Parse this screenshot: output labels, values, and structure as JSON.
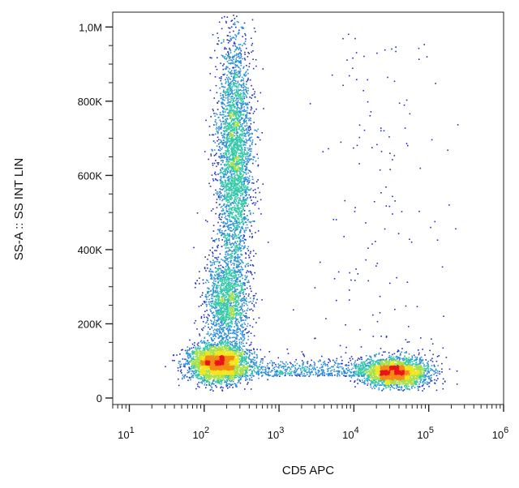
{
  "chart_data": {
    "type": "scatter",
    "title": "",
    "xlabel": "CD5 APC",
    "ylabel": "SS-A :: SS INT LIN",
    "x_scale": "log",
    "xlim": [
      6,
      1000000
    ],
    "y_scale": "linear",
    "ylim": [
      0,
      1040000
    ],
    "x_ticks": [
      {
        "value": 10,
        "base": "10",
        "exp": "1"
      },
      {
        "value": 100,
        "base": "10",
        "exp": "2"
      },
      {
        "value": 1000,
        "base": "10",
        "exp": "3"
      },
      {
        "value": 10000,
        "base": "10",
        "exp": "4"
      },
      {
        "value": 100000,
        "base": "10",
        "exp": "5"
      },
      {
        "value": 1000000,
        "base": "10",
        "exp": "6"
      }
    ],
    "y_ticks": [
      {
        "value": 0,
        "label": "0"
      },
      {
        "value": 200000,
        "label": "200K"
      },
      {
        "value": 400000,
        "label": "400K"
      },
      {
        "value": 600000,
        "label": "600K"
      },
      {
        "value": 800000,
        "label": "800K"
      },
      {
        "value": 1000000,
        "label": "1,0M"
      }
    ],
    "grid": false,
    "color_scale": [
      "#1f2fbf",
      "#2a8fd6",
      "#35c9a8",
      "#a8e04a",
      "#f2e51c",
      "#f28a14",
      "#e8141a"
    ],
    "populations": [
      {
        "x_center": 250,
        "y_center": 650000,
        "x_log_sd": 0.12,
        "y_sd": 170000,
        "density": "high"
      },
      {
        "x_center": 200,
        "y_center": 260000,
        "x_log_sd": 0.15,
        "y_sd": 60000,
        "density": "medium"
      },
      {
        "x_center": 150,
        "y_center": 95000,
        "x_log_sd": 0.2,
        "y_sd": 25000,
        "density": "high"
      },
      {
        "x_center": 35000,
        "y_center": 70000,
        "x_log_sd": 0.22,
        "y_sd": 20000,
        "density": "very high"
      },
      {
        "x_center": 20000,
        "y_center": 400000,
        "x_log_sd": 0.4,
        "y_sd": 250000,
        "density": "sparse"
      }
    ]
  }
}
